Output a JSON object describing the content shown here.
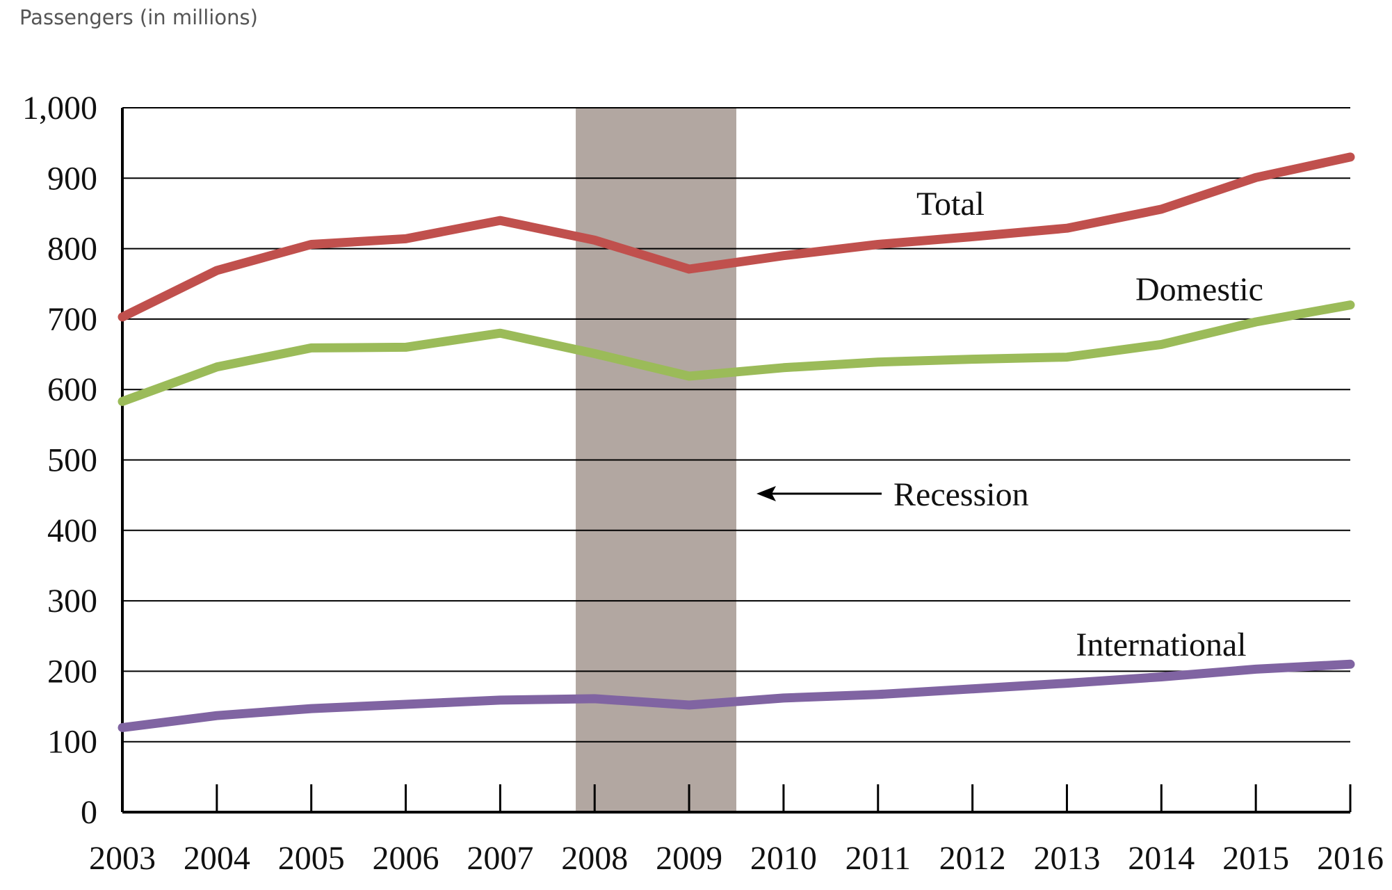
{
  "chart_data": {
    "type": "line",
    "title": "",
    "ylabel": "Passengers (in millions)",
    "xlabel": "",
    "x": [
      "2003",
      "2004",
      "2005",
      "2006",
      "2007",
      "2008",
      "2009",
      "2010",
      "2011",
      "2012",
      "2013",
      "2014",
      "2015",
      "2016"
    ],
    "ylim": [
      0,
      1000
    ],
    "yticks": [
      0,
      100,
      200,
      300,
      400,
      500,
      600,
      700,
      800,
      900,
      1000
    ],
    "ytick_labels": [
      "0",
      "100",
      "200",
      "300",
      "400",
      "500",
      "600",
      "700",
      "800",
      "900",
      "1,000"
    ],
    "grid": "horizontal",
    "series": [
      {
        "name": "Total",
        "color": "#c0504d",
        "values": [
          703,
          769,
          806,
          814,
          840,
          812,
          771,
          790,
          806,
          817,
          829,
          856,
          901,
          930
        ]
      },
      {
        "name": "Domestic",
        "color": "#9bbb59",
        "values": [
          583,
          632,
          659,
          660,
          680,
          651,
          619,
          631,
          639,
          643,
          646,
          664,
          696,
          720
        ]
      },
      {
        "name": "International",
        "color": "#8064a2",
        "values": [
          120,
          137,
          147,
          153,
          159,
          161,
          152,
          162,
          167,
          175,
          183,
          192,
          203,
          210
        ]
      }
    ],
    "recession": {
      "start": 2007.8,
      "end": 2009.5,
      "label": "Recession",
      "color": "#b2a7a1"
    }
  }
}
